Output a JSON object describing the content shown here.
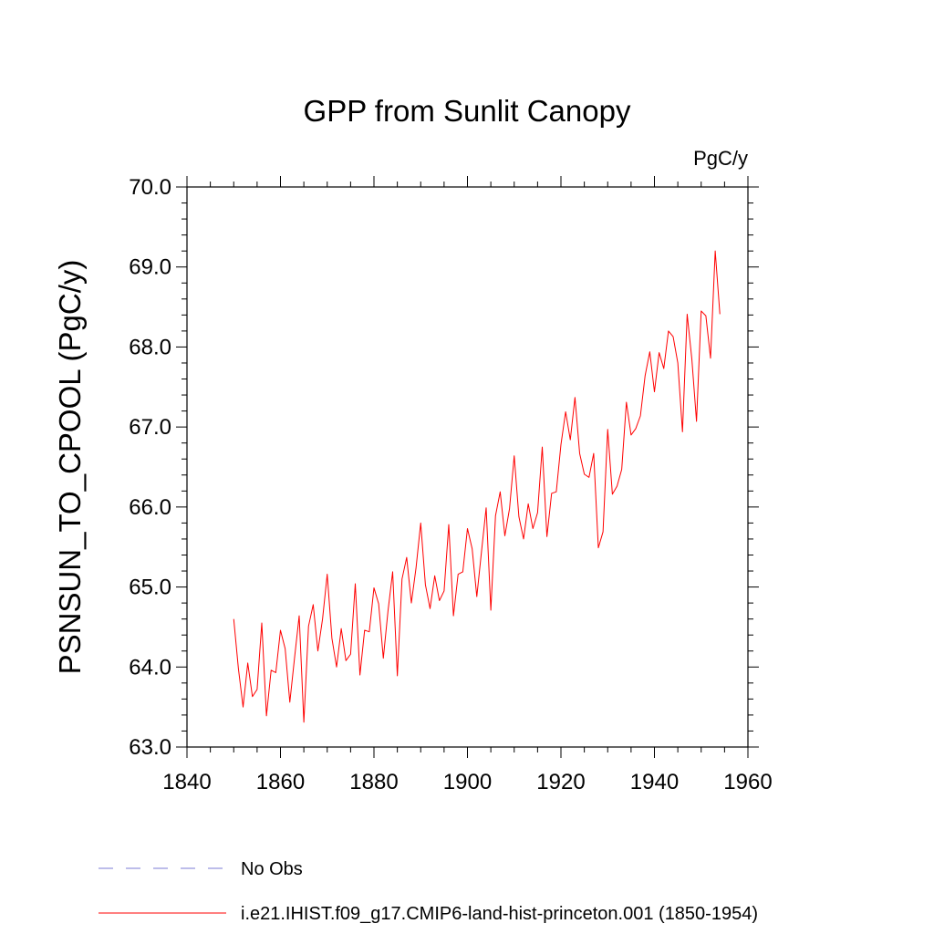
{
  "chart_data": {
    "type": "line",
    "title": "GPP from Sunlit Canopy",
    "units": "PgC/y",
    "ylabel": "PSNSUN_TO_CPOOL  (PgC/y)",
    "xlabel": "",
    "xlim": [
      1840,
      1960
    ],
    "ylim": [
      63.0,
      70.0
    ],
    "x_ticks": [
      1840,
      1860,
      1880,
      1900,
      1920,
      1940,
      1960
    ],
    "x_tick_labels": [
      "1840",
      "1860",
      "1880",
      "1900",
      "1920",
      "1940",
      "1960"
    ],
    "y_ticks": [
      63.0,
      64.0,
      65.0,
      66.0,
      67.0,
      68.0,
      69.0,
      70.0
    ],
    "y_tick_labels": [
      "63.0",
      "64.0",
      "65.0",
      "66.0",
      "67.0",
      "68.0",
      "69.0",
      "70.0"
    ],
    "grid": false,
    "legend_position": "bottom",
    "series": [
      {
        "name": "i.e21.IHIST.f09_g17.CMIP6-land-hist-princeton.001 (1850-1954)",
        "color": "#ff0000",
        "style": "solid",
        "x": [
          1850,
          1851,
          1852,
          1853,
          1854,
          1855,
          1856,
          1857,
          1858,
          1859,
          1860,
          1861,
          1862,
          1863,
          1864,
          1865,
          1866,
          1867,
          1868,
          1869,
          1870,
          1871,
          1872,
          1873,
          1874,
          1875,
          1876,
          1877,
          1878,
          1879,
          1880,
          1881,
          1882,
          1883,
          1884,
          1885,
          1886,
          1887,
          1888,
          1889,
          1890,
          1891,
          1892,
          1893,
          1894,
          1895,
          1896,
          1897,
          1898,
          1899,
          1900,
          1901,
          1902,
          1903,
          1904,
          1905,
          1906,
          1907,
          1908,
          1909,
          1910,
          1911,
          1912,
          1913,
          1914,
          1915,
          1916,
          1917,
          1918,
          1919,
          1920,
          1921,
          1922,
          1923,
          1924,
          1925,
          1926,
          1927,
          1928,
          1929,
          1930,
          1931,
          1932,
          1933,
          1934,
          1935,
          1936,
          1937,
          1938,
          1939,
          1940,
          1941,
          1942,
          1943,
          1944,
          1945,
          1946,
          1947,
          1948,
          1949,
          1950,
          1951,
          1952,
          1953,
          1954
        ],
        "values": [
          64.6,
          63.98,
          63.5,
          64.05,
          63.63,
          63.72,
          64.55,
          63.39,
          63.96,
          63.93,
          64.46,
          64.23,
          63.56,
          64.11,
          64.64,
          63.31,
          64.51,
          64.78,
          64.2,
          64.6,
          65.16,
          64.36,
          64.0,
          64.48,
          64.08,
          64.16,
          65.04,
          63.9,
          64.46,
          64.44,
          64.99,
          64.79,
          64.11,
          64.7,
          65.19,
          63.89,
          65.1,
          65.37,
          64.8,
          65.24,
          65.8,
          65.03,
          64.73,
          65.14,
          64.83,
          64.95,
          65.78,
          64.64,
          65.16,
          65.19,
          65.73,
          65.48,
          64.88,
          65.44,
          65.99,
          64.71,
          65.89,
          66.19,
          65.64,
          65.98,
          66.64,
          65.88,
          65.6,
          66.04,
          65.73,
          65.93,
          66.75,
          65.63,
          66.17,
          66.19,
          66.78,
          67.19,
          66.84,
          67.37,
          66.67,
          66.41,
          66.37,
          66.67,
          65.49,
          65.69,
          66.97,
          66.16,
          66.26,
          66.47,
          67.31,
          66.9,
          66.98,
          67.14,
          67.64,
          67.94,
          67.44,
          67.93,
          67.73,
          68.2,
          68.13,
          67.8,
          66.94,
          68.41,
          67.85,
          67.07,
          68.45,
          68.39,
          67.86,
          69.2,
          68.41
        ]
      }
    ],
    "legend": [
      {
        "label": "No Obs",
        "color": "#7b7bd6",
        "style": "dashed"
      },
      {
        "label": "i.e21.IHIST.f09_g17.CMIP6-land-hist-princeton.001 (1850-1954)",
        "color": "#ff0000",
        "style": "solid"
      }
    ]
  }
}
